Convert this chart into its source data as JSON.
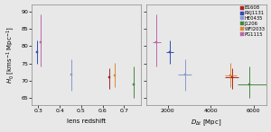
{
  "lenses": [
    "B1608",
    "RXJ1131",
    "HE0435",
    "J1206",
    "WFI2033",
    "PG1115"
  ],
  "colors": [
    "#aa2222",
    "#334db3",
    "#8899cc",
    "#448844",
    "#dd8833",
    "#bb66aa"
  ],
  "z": [
    0.6306,
    0.295,
    0.454,
    0.745,
    0.6575,
    0.311
  ],
  "H0": [
    71.0,
    78.2,
    71.7,
    69.0,
    71.6,
    81.1
  ],
  "H0_err_lo": [
    3.3,
    3.4,
    4.5,
    4.0,
    3.5,
    7.1
  ],
  "H0_err_hi": [
    2.5,
    3.4,
    4.5,
    5.0,
    3.5,
    8.0
  ],
  "D_Delta_t": [
    4990,
    2090,
    2800,
    5800,
    4930,
    1470
  ],
  "D_err_lo": [
    320,
    170,
    310,
    540,
    280,
    180
  ],
  "D_err_hi": [
    320,
    170,
    310,
    790,
    280,
    220
  ],
  "xlim1": [
    0.27,
    0.78
  ],
  "xlim2": [
    1000,
    6600
  ],
  "ylim": [
    63,
    92
  ],
  "yticks": [
    65,
    70,
    75,
    80,
    85,
    90
  ],
  "xlabel1": "lens redshift",
  "xlabel2": "$D_{\\Delta t}$ [Mpc]",
  "ylabel": "$H_0$ [kms$^{-1}$ Mpc$^{-1}$]",
  "xticks1": [
    0.3,
    0.4,
    0.5,
    0.6,
    0.7
  ],
  "xticks2": [
    2000,
    4000,
    6000
  ],
  "bg_color": "#e8e8e8"
}
